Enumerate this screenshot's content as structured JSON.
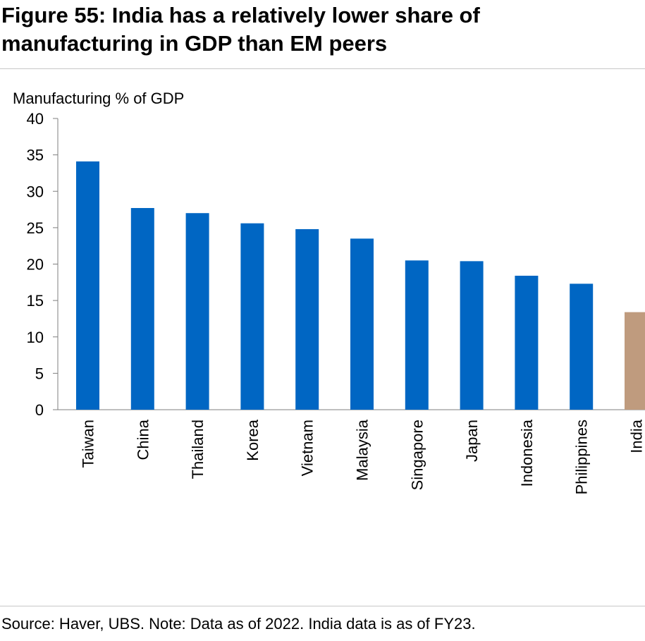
{
  "header": {
    "title_line1": "Figure 55: India has a relatively lower share of",
    "title_line2": "manufacturing in GDP than EM peers"
  },
  "footer": {
    "source": "Source: Haver, UBS. Note: Data as of 2022. India data is as of FY23."
  },
  "colors": {
    "bar": "#0066c3",
    "highlight": "#bf9b7e",
    "axis": "#7f7f7f"
  },
  "chart_data": {
    "type": "bar",
    "ylabel": "Manufacturing % of GDP",
    "categories": [
      "Taiwan",
      "China",
      "Thailand",
      "Korea",
      "Vietnam",
      "Malaysia",
      "Singapore",
      "Japan",
      "Indonesia",
      "Philippines",
      "India"
    ],
    "values": [
      34.1,
      27.7,
      27.0,
      25.6,
      24.8,
      23.5,
      20.5,
      20.4,
      18.4,
      17.3,
      13.4
    ],
    "highlight": "India",
    "ylim": [
      0,
      40
    ],
    "yticks": [
      0,
      5,
      10,
      15,
      20,
      25,
      30,
      35,
      40
    ],
    "grid": false
  }
}
